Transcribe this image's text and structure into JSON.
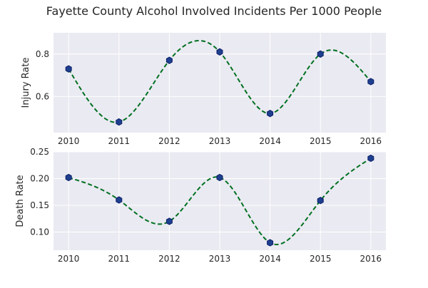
{
  "chart_data": [
    {
      "type": "line",
      "title": "Fayette County Alcohol Involved Incidents Per 1000 People",
      "xlabel": "",
      "ylabel": "Injury Rate",
      "x": [
        2010,
        2011,
        2012,
        2013,
        2014,
        2015,
        2016
      ],
      "values": [
        0.73,
        0.48,
        0.77,
        0.81,
        0.52,
        0.8,
        0.67
      ],
      "xlim": [
        2009.7,
        2016.3
      ],
      "ylim": [
        0.43,
        0.9
      ],
      "xticks": [
        "2010",
        "2011",
        "2012",
        "2013",
        "2014",
        "2015",
        "2016"
      ],
      "yticks": [
        "0.6",
        "0.8"
      ],
      "ytick_values": [
        0.6,
        0.8
      ],
      "grid": true,
      "style": "smoothed dashed line with hexagon markers",
      "line_color": "#007020",
      "marker_color": "#1f3f8f",
      "background_color": "#eaeaf2"
    },
    {
      "type": "line",
      "xlabel": "",
      "ylabel": "Death Rate",
      "x": [
        2010,
        2011,
        2012,
        2013,
        2014,
        2015,
        2016
      ],
      "values": [
        0.202,
        0.16,
        0.12,
        0.202,
        0.08,
        0.159,
        0.238
      ],
      "xlim": [
        2009.7,
        2016.3
      ],
      "ylim": [
        0.066,
        0.25
      ],
      "xticks": [
        "2010",
        "2011",
        "2012",
        "2013",
        "2014",
        "2015",
        "2016"
      ],
      "yticks": [
        "0.10",
        "0.15",
        "0.20",
        "0.25"
      ],
      "ytick_values": [
        0.1,
        0.15,
        0.2,
        0.25
      ],
      "grid": true,
      "style": "smoothed dashed line with hexagon markers",
      "line_color": "#007020",
      "marker_color": "#1f3f8f",
      "background_color": "#eaeaf2"
    }
  ]
}
